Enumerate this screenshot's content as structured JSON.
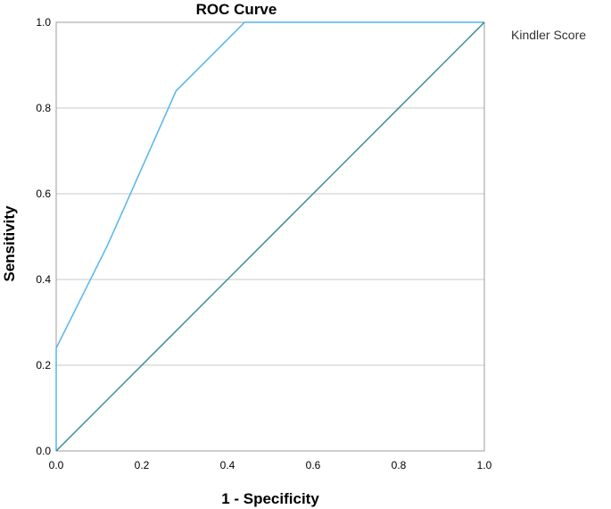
{
  "chart_data": {
    "type": "line",
    "title": "ROC Curve",
    "xlabel": "1 - Specificity",
    "ylabel": "Sensitivity",
    "xlim": [
      0,
      1
    ],
    "ylim": [
      0,
      1
    ],
    "x_ticks": [
      "0.0",
      "0.2",
      "0.4",
      "0.6",
      "0.8",
      "1.0"
    ],
    "y_ticks": [
      "0.0",
      "0.2",
      "0.4",
      "0.6",
      "0.8",
      "1.0"
    ],
    "grid": "horizontal",
    "legend": {
      "placement": "right",
      "entries": [
        "Kindler Score"
      ]
    },
    "series": [
      {
        "name": "Kindler Score",
        "color": "#56b4e9",
        "x": [
          0.0,
          0.0,
          0.12,
          0.28,
          0.44,
          1.0
        ],
        "y": [
          0.0,
          0.24,
          0.48,
          0.84,
          1.0,
          1.0
        ]
      },
      {
        "color": "#3c8c8c",
        "x": [
          0.0,
          1.0
        ],
        "y": [
          0.0,
          1.0
        ]
      }
    ]
  }
}
